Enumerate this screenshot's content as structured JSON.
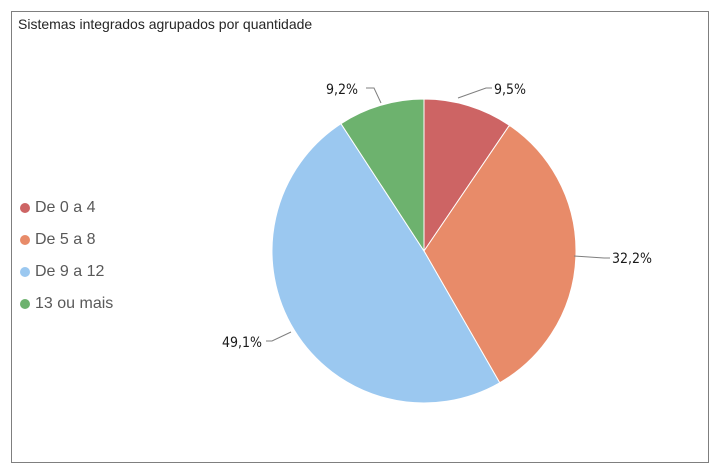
{
  "chart_data": {
    "type": "pie",
    "title": "Sistemas integrados agrupados por quantidade",
    "legend_position": "left",
    "slices": [
      {
        "label": "De 0 a 4",
        "value": 9.5,
        "display": "9,5%",
        "color": "#cd6464"
      },
      {
        "label": "De 5 a 8",
        "value": 32.2,
        "display": "32,2%",
        "color": "#e88b69"
      },
      {
        "label": "De 9 a 12",
        "value": 49.1,
        "display": "49,1%",
        "color": "#9bc8f0"
      },
      {
        "label": "13 ou mais",
        "value": 9.2,
        "display": "9,2%",
        "color": "#6db26e"
      }
    ]
  }
}
